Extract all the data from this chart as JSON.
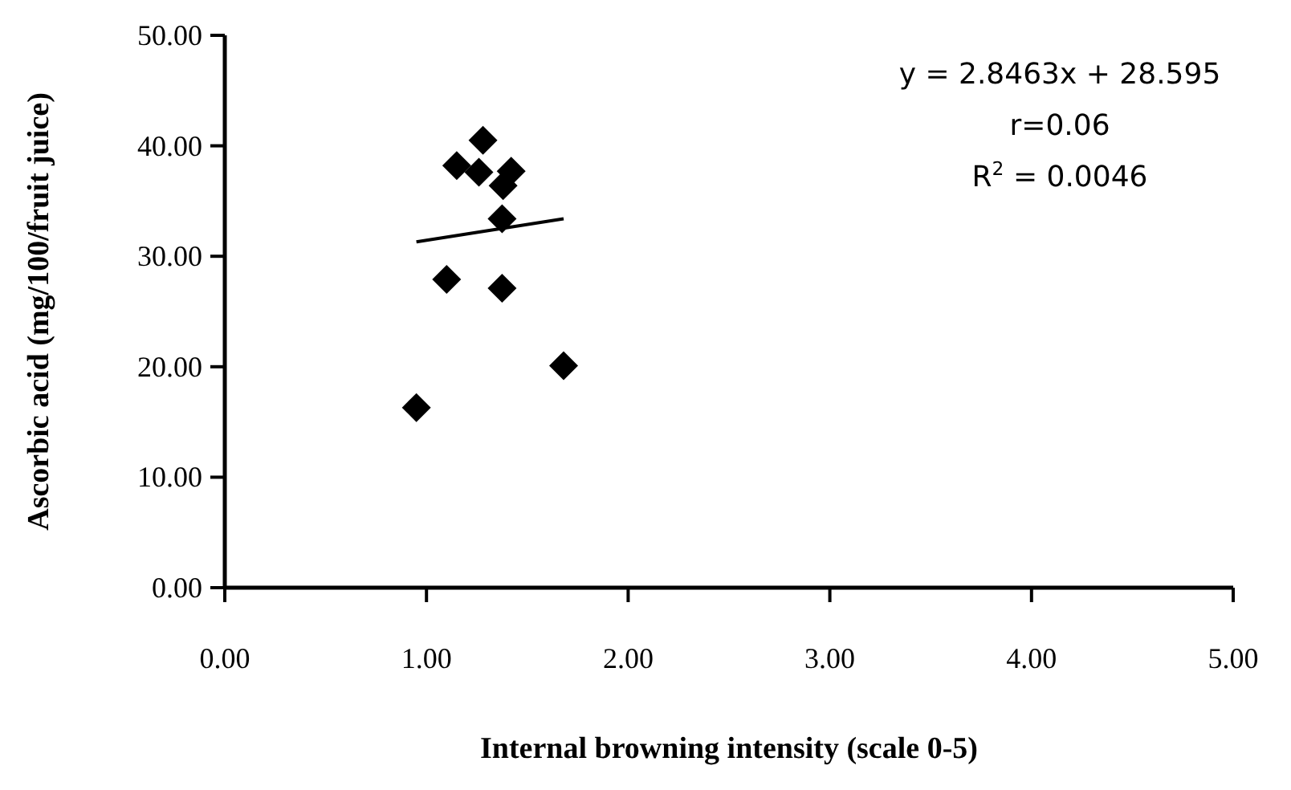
{
  "chart_data": {
    "type": "scatter",
    "xlabel": "Internal browning intensity (scale 0-5)",
    "ylabel": "Ascorbic acid (mg/100/fruit juice)",
    "grid": false,
    "xlim": [
      0,
      5
    ],
    "ylim": [
      0,
      50
    ],
    "xticks": [
      {
        "value": 0,
        "label": "0.00"
      },
      {
        "value": 1,
        "label": "1.00"
      },
      {
        "value": 2,
        "label": "2.00"
      },
      {
        "value": 3,
        "label": "3.00"
      },
      {
        "value": 4,
        "label": "4.00"
      },
      {
        "value": 5,
        "label": "5.00"
      }
    ],
    "yticks": [
      {
        "value": 0,
        "label": "0.00"
      },
      {
        "value": 10,
        "label": "10.00"
      },
      {
        "value": 20,
        "label": "20.00"
      },
      {
        "value": 30,
        "label": "30.00"
      },
      {
        "value": 40,
        "label": "40.00"
      },
      {
        "value": 50,
        "label": "50.00"
      }
    ],
    "series": [
      {
        "marker": "diamond",
        "color": "#000000",
        "x": [
          0.95,
          1.1,
          1.375,
          1.68,
          1.375,
          1.28,
          1.15,
          1.26,
          1.42,
          1.38
        ],
        "values": [
          16.3,
          27.9,
          27.1,
          20.1,
          33.4,
          40.5,
          38.2,
          37.6,
          37.7,
          36.4
        ]
      },
      {
        "type": "line",
        "color": "#000000",
        "x": [
          0.95,
          1.68
        ],
        "values": [
          31.3,
          33.4
        ]
      }
    ],
    "annotations": [
      "y = 2.8463x + 28.595",
      "r=0.06",
      "R$^{2}$ = 0.0046"
    ]
  }
}
